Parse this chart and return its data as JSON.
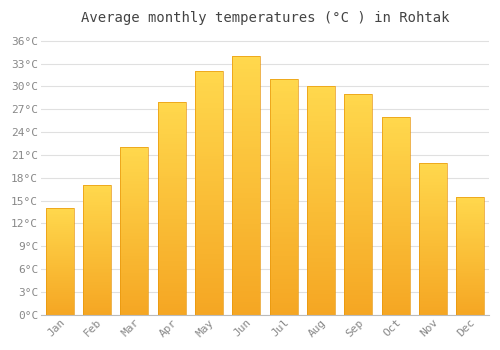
{
  "title": "Average monthly temperatures (°C ) in Rohtak",
  "months": [
    "Jan",
    "Feb",
    "Mar",
    "Apr",
    "May",
    "Jun",
    "Jul",
    "Aug",
    "Sep",
    "Oct",
    "Nov",
    "Dec"
  ],
  "temperatures": [
    14,
    17,
    22,
    28,
    32,
    34,
    31,
    30,
    29,
    26,
    20,
    15.5
  ],
  "bar_color_top": "#FFD84D",
  "bar_color_bottom": "#F5A623",
  "bar_edge_color": "#E8960A",
  "background_color": "#FFFFFF",
  "grid_color": "#E0E0E0",
  "tick_label_color": "#888888",
  "title_color": "#444444",
  "ylim": [
    0,
    37
  ],
  "yticks": [
    0,
    3,
    6,
    9,
    12,
    15,
    18,
    21,
    24,
    27,
    30,
    33,
    36
  ],
  "ytick_labels": [
    "0°C",
    "3°C",
    "6°C",
    "9°C",
    "12°C",
    "15°C",
    "18°C",
    "21°C",
    "24°C",
    "27°C",
    "30°C",
    "33°C",
    "36°C"
  ],
  "title_fontsize": 10,
  "tick_fontsize": 8,
  "bar_width": 0.75
}
